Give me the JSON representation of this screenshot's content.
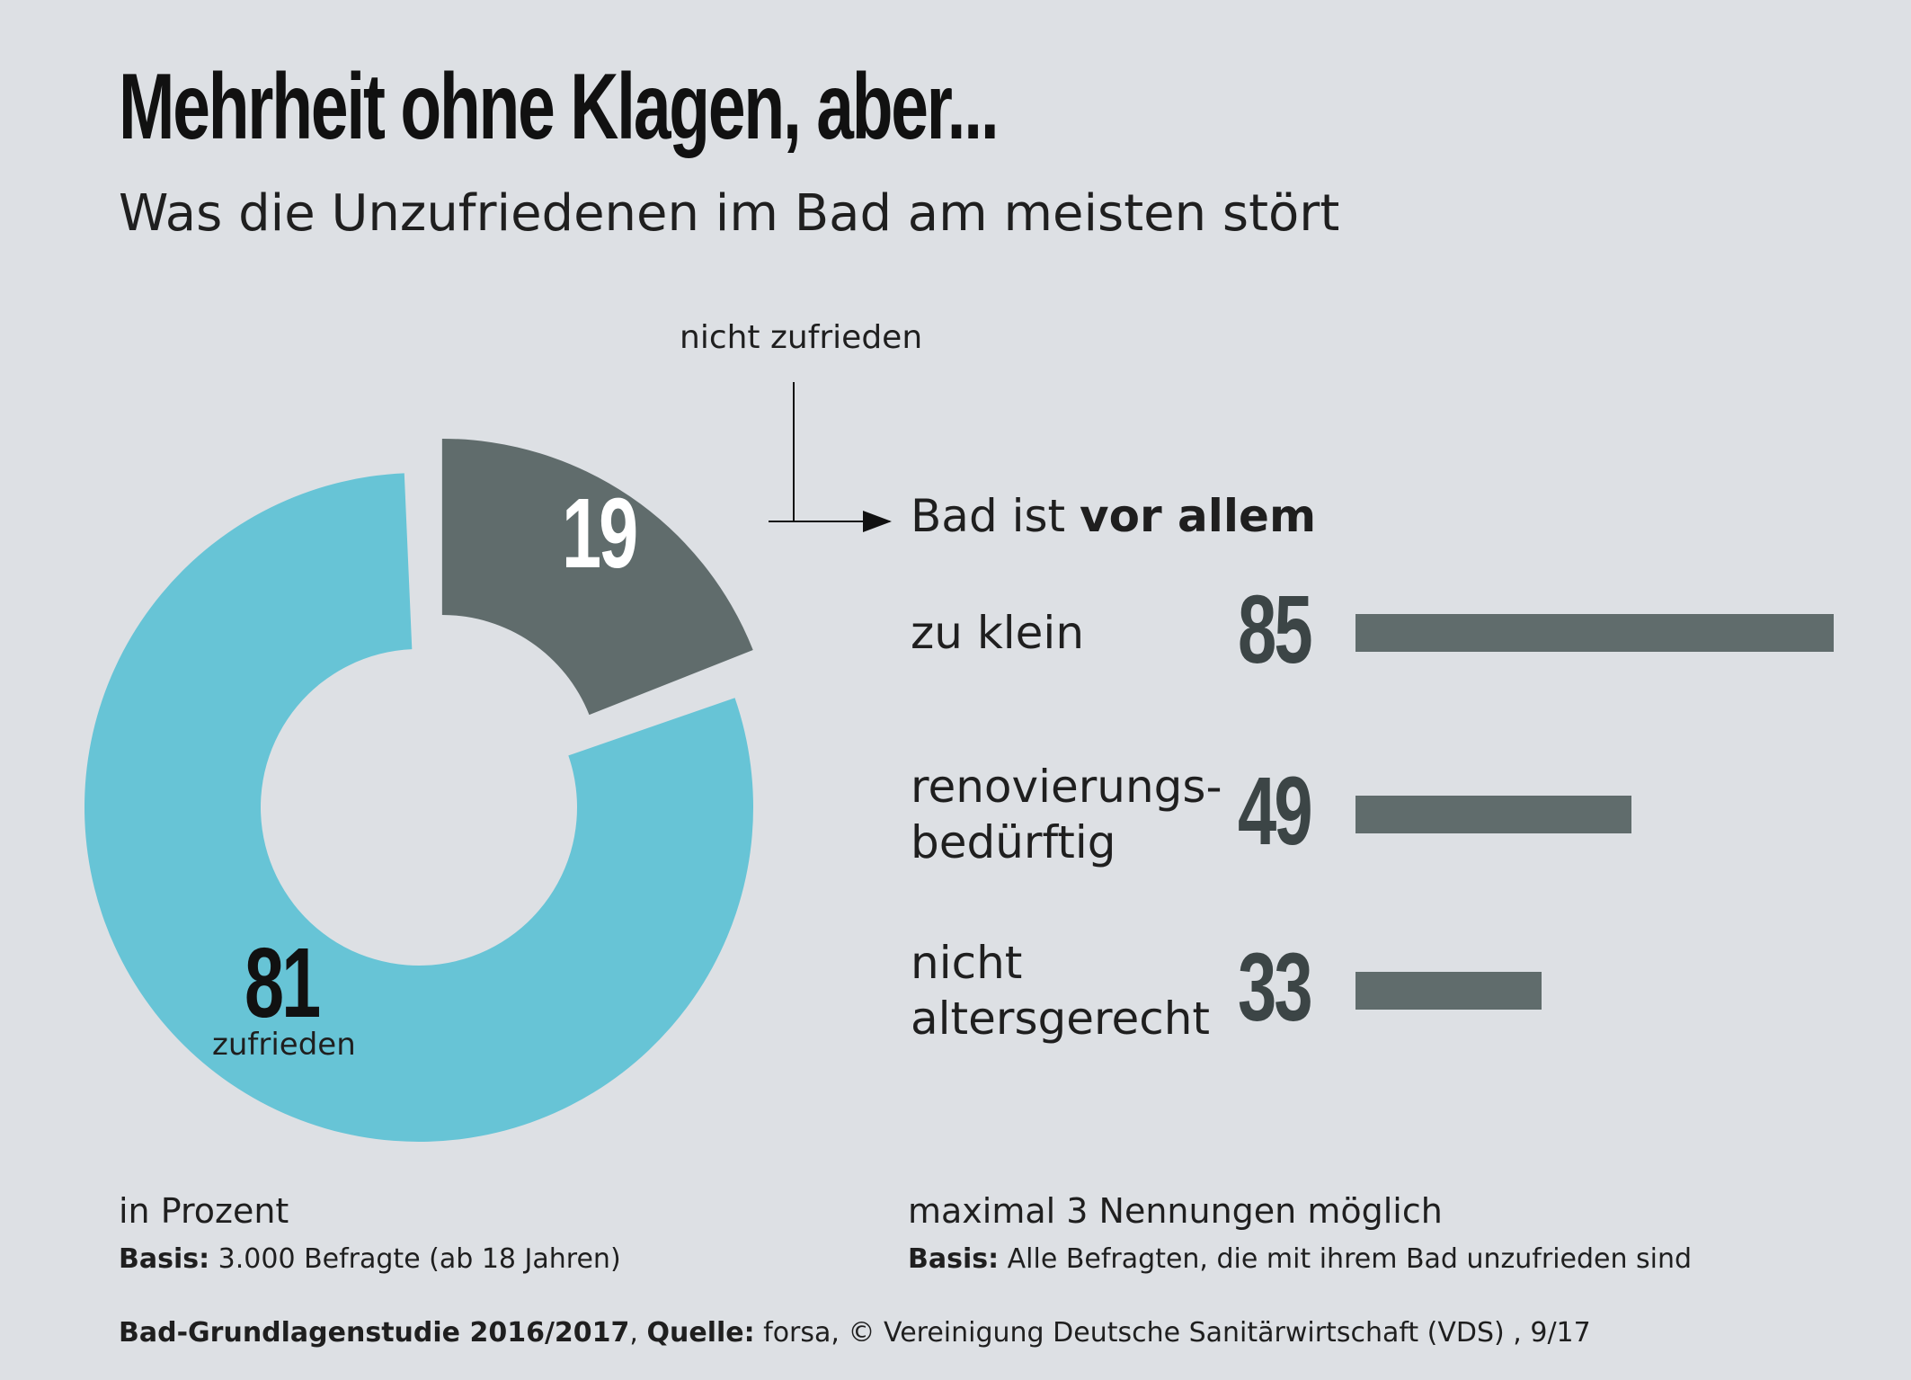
{
  "title": "Mehrheit ohne Klagen, aber...",
  "subtitle": "Was die Unzufriedenen im Bad am meisten stört",
  "chart_data": [
    {
      "type": "pie",
      "variant": "donut",
      "unit": "in Prozent",
      "slices": [
        {
          "label": "nicht zufrieden",
          "value": 19,
          "color": "#606c6c",
          "exploded": true
        },
        {
          "label": "zufrieden",
          "value": 81,
          "color": "#67c4d6"
        }
      ]
    },
    {
      "type": "bar",
      "orientation": "horizontal",
      "title_prefix": "Bad ist ",
      "title_bold": "vor allem",
      "categories": [
        "zu klein",
        "renovierungs-\nbedürftig",
        "nicht\naltersgerecht"
      ],
      "values": [
        85,
        49,
        33
      ],
      "color": "#606c6c",
      "xlim": [
        0,
        85
      ]
    }
  ],
  "notes": {
    "left_unit": "in Prozent",
    "left_basis_label": "Basis:",
    "left_basis_text": " 3.000 Befragte (ab 18 Jahren)",
    "right_unit": "maximal 3 Nennungen möglich",
    "right_basis_label": "Basis:",
    "right_basis_text": " Alle Befragten, die mit ihrem Bad unzufrieden sind"
  },
  "source": {
    "study": "Bad-Grundlagenstudie 2016/2017",
    "sep": ", ",
    "label": "Quelle:",
    "text": " forsa, © Vereinigung Deutsche Sanitärwirtschaft (VDS) , 9/17"
  }
}
